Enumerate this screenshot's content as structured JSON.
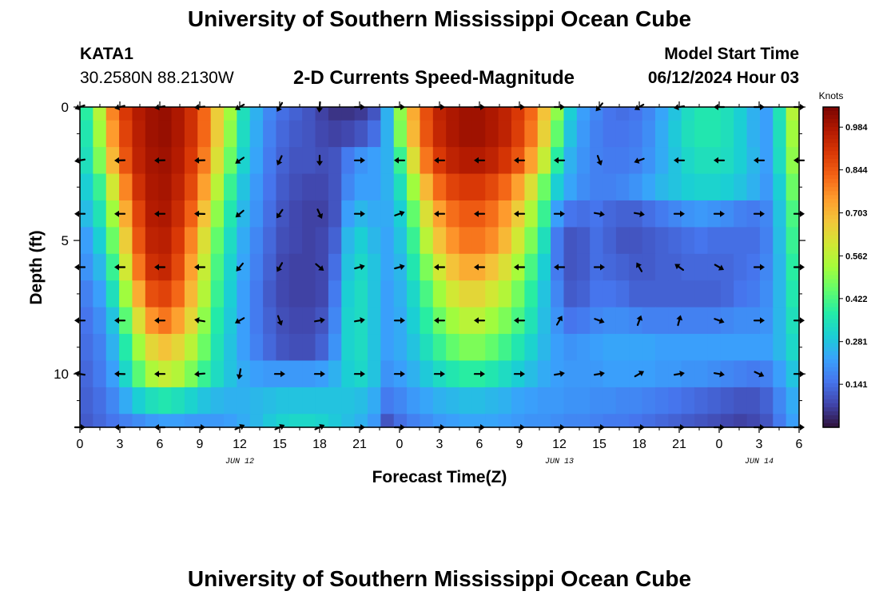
{
  "page": {
    "title": "University of Southern Mississippi Ocean Cube",
    "bottom_title": "University of Southern Mississippi Ocean Cube",
    "station_id": "KATA1",
    "coordinates": "30.2580N  88.2130W",
    "subtitle": "2-D Currents Speed-Magnitude",
    "model_start_label": "Model Start Time",
    "model_start_value": "06/12/2024 Hour 03"
  },
  "chart_data": {
    "type": "heatmap",
    "title": "2-D Currents Speed-Magnitude",
    "xlabel": "Forecast Time(Z)",
    "ylabel": "Depth (ft)",
    "x_hours_range": [
      0,
      54
    ],
    "x_tick_hours": [
      0,
      3,
      6,
      9,
      12,
      15,
      18,
      21,
      24,
      27,
      30,
      33,
      36,
      39,
      42,
      45,
      48,
      51,
      54
    ],
    "x_tick_labels": [
      "0",
      "3",
      "6",
      "9",
      "12",
      "15",
      "18",
      "21",
      "0",
      "3",
      "6",
      "9",
      "12",
      "15",
      "18",
      "21",
      "0",
      "3",
      "6"
    ],
    "date_labels": [
      {
        "hour": 12,
        "label": "JUN 12"
      },
      {
        "hour": 36,
        "label": "JUN 13"
      },
      {
        "hour": 51,
        "label": "JUN 14"
      }
    ],
    "y_range_ft": [
      0,
      12
    ],
    "y_tick_values": [
      0,
      5,
      10
    ],
    "y_tick_labels": [
      "0",
      "5",
      "10"
    ],
    "colorbar": {
      "title": "Knots",
      "range": [
        0,
        1.05
      ],
      "tick_values": [
        0.141,
        0.281,
        0.422,
        0.562,
        0.703,
        0.844,
        0.984
      ],
      "tick_labels": [
        "0.141",
        "0.281",
        "0.422",
        "0.562",
        "0.703",
        "0.844",
        "0.984"
      ],
      "colors": [
        "#30123b",
        "#4145ab",
        "#4675ed",
        "#39a2fc",
        "#1bcfd4",
        "#24eca6",
        "#61fc6c",
        "#a4fc3b",
        "#d1e834",
        "#f3c63a",
        "#fe9b2d",
        "#f36315",
        "#d93806",
        "#b11901",
        "#7a0402"
      ]
    },
    "depth_levels_ft": [
      0,
      1,
      2,
      3,
      4,
      5,
      6,
      7,
      8,
      9,
      10,
      11,
      12
    ],
    "speed_knots": [
      [
        0.38,
        0.55,
        0.78,
        0.9,
        0.97,
        1.0,
        1.01,
        0.98,
        0.92,
        0.82,
        0.66,
        0.52,
        0.34,
        0.25,
        0.18,
        0.14,
        0.12,
        0.1,
        0.07,
        0.05,
        0.05,
        0.06,
        0.1,
        0.25,
        0.5,
        0.72,
        0.86,
        0.95,
        0.98,
        1.0,
        1.0,
        0.98,
        0.95,
        0.9,
        0.82,
        0.68,
        0.5,
        0.3,
        0.22,
        0.18,
        0.15,
        0.14,
        0.15,
        0.18,
        0.23,
        0.28,
        0.33,
        0.36,
        0.36,
        0.34,
        0.3,
        0.25,
        0.22,
        0.35,
        0.55
      ],
      [
        0.36,
        0.52,
        0.75,
        0.88,
        0.96,
        1.0,
        1.01,
        0.98,
        0.92,
        0.82,
        0.66,
        0.5,
        0.33,
        0.24,
        0.17,
        0.13,
        0.11,
        0.1,
        0.08,
        0.07,
        0.08,
        0.1,
        0.14,
        0.25,
        0.48,
        0.7,
        0.85,
        0.94,
        0.98,
        1.0,
        1.0,
        0.98,
        0.95,
        0.89,
        0.8,
        0.65,
        0.45,
        0.28,
        0.21,
        0.17,
        0.15,
        0.15,
        0.16,
        0.19,
        0.24,
        0.29,
        0.34,
        0.36,
        0.36,
        0.34,
        0.3,
        0.25,
        0.22,
        0.34,
        0.52
      ],
      [
        0.34,
        0.48,
        0.7,
        0.85,
        0.95,
        0.99,
        1.0,
        0.97,
        0.9,
        0.79,
        0.62,
        0.46,
        0.31,
        0.23,
        0.16,
        0.12,
        0.1,
        0.1,
        0.09,
        0.1,
        0.16,
        0.2,
        0.22,
        0.25,
        0.4,
        0.62,
        0.8,
        0.9,
        0.95,
        0.97,
        0.97,
        0.95,
        0.91,
        0.85,
        0.74,
        0.58,
        0.38,
        0.25,
        0.2,
        0.17,
        0.16,
        0.16,
        0.17,
        0.2,
        0.24,
        0.28,
        0.32,
        0.34,
        0.34,
        0.33,
        0.3,
        0.26,
        0.22,
        0.33,
        0.5
      ],
      [
        0.3,
        0.4,
        0.6,
        0.78,
        0.92,
        0.98,
        0.99,
        0.95,
        0.87,
        0.74,
        0.56,
        0.4,
        0.28,
        0.21,
        0.15,
        0.11,
        0.09,
        0.08,
        0.08,
        0.1,
        0.18,
        0.22,
        0.22,
        0.25,
        0.34,
        0.52,
        0.7,
        0.82,
        0.88,
        0.9,
        0.9,
        0.87,
        0.82,
        0.74,
        0.62,
        0.46,
        0.3,
        0.23,
        0.19,
        0.17,
        0.17,
        0.18,
        0.2,
        0.23,
        0.26,
        0.28,
        0.3,
        0.31,
        0.31,
        0.3,
        0.28,
        0.25,
        0.21,
        0.3,
        0.46
      ],
      [
        0.27,
        0.35,
        0.52,
        0.72,
        0.88,
        0.97,
        0.98,
        0.93,
        0.83,
        0.68,
        0.5,
        0.36,
        0.26,
        0.2,
        0.14,
        0.1,
        0.08,
        0.07,
        0.07,
        0.1,
        0.22,
        0.26,
        0.24,
        0.24,
        0.3,
        0.45,
        0.62,
        0.74,
        0.81,
        0.84,
        0.84,
        0.81,
        0.75,
        0.66,
        0.54,
        0.4,
        0.22,
        0.15,
        0.14,
        0.15,
        0.13,
        0.12,
        0.12,
        0.14,
        0.16,
        0.18,
        0.2,
        0.21,
        0.2,
        0.19,
        0.17,
        0.16,
        0.18,
        0.28,
        0.42
      ],
      [
        0.22,
        0.3,
        0.46,
        0.66,
        0.85,
        0.95,
        0.96,
        0.9,
        0.78,
        0.62,
        0.45,
        0.33,
        0.24,
        0.18,
        0.13,
        0.09,
        0.08,
        0.07,
        0.08,
        0.12,
        0.26,
        0.3,
        0.26,
        0.23,
        0.28,
        0.4,
        0.56,
        0.68,
        0.76,
        0.8,
        0.8,
        0.77,
        0.7,
        0.6,
        0.48,
        0.34,
        0.16,
        0.1,
        0.11,
        0.14,
        0.12,
        0.1,
        0.1,
        0.11,
        0.12,
        0.13,
        0.14,
        0.15,
        0.14,
        0.14,
        0.14,
        0.14,
        0.17,
        0.27,
        0.4
      ],
      [
        0.2,
        0.26,
        0.4,
        0.6,
        0.8,
        0.92,
        0.94,
        0.87,
        0.74,
        0.58,
        0.42,
        0.31,
        0.23,
        0.17,
        0.12,
        0.08,
        0.07,
        0.07,
        0.08,
        0.14,
        0.28,
        0.32,
        0.28,
        0.23,
        0.26,
        0.36,
        0.48,
        0.6,
        0.68,
        0.72,
        0.72,
        0.68,
        0.62,
        0.53,
        0.42,
        0.3,
        0.16,
        0.1,
        0.11,
        0.14,
        0.13,
        0.12,
        0.11,
        0.11,
        0.12,
        0.12,
        0.13,
        0.13,
        0.13,
        0.13,
        0.14,
        0.15,
        0.18,
        0.26,
        0.38
      ],
      [
        0.17,
        0.22,
        0.34,
        0.52,
        0.72,
        0.86,
        0.88,
        0.82,
        0.7,
        0.55,
        0.4,
        0.3,
        0.22,
        0.16,
        0.11,
        0.08,
        0.07,
        0.07,
        0.08,
        0.16,
        0.3,
        0.33,
        0.28,
        0.22,
        0.25,
        0.32,
        0.42,
        0.52,
        0.6,
        0.64,
        0.64,
        0.6,
        0.55,
        0.47,
        0.38,
        0.28,
        0.18,
        0.11,
        0.12,
        0.15,
        0.15,
        0.14,
        0.12,
        0.12,
        0.12,
        0.12,
        0.12,
        0.12,
        0.12,
        0.13,
        0.15,
        0.16,
        0.19,
        0.26,
        0.36
      ],
      [
        0.15,
        0.19,
        0.28,
        0.44,
        0.62,
        0.76,
        0.8,
        0.74,
        0.64,
        0.5,
        0.37,
        0.29,
        0.22,
        0.16,
        0.12,
        0.09,
        0.08,
        0.08,
        0.1,
        0.18,
        0.31,
        0.33,
        0.28,
        0.22,
        0.24,
        0.3,
        0.38,
        0.46,
        0.52,
        0.56,
        0.56,
        0.52,
        0.48,
        0.42,
        0.35,
        0.27,
        0.2,
        0.15,
        0.16,
        0.18,
        0.19,
        0.19,
        0.18,
        0.17,
        0.17,
        0.17,
        0.17,
        0.17,
        0.17,
        0.18,
        0.19,
        0.19,
        0.2,
        0.26,
        0.34
      ],
      [
        0.14,
        0.17,
        0.25,
        0.37,
        0.52,
        0.64,
        0.68,
        0.64,
        0.56,
        0.46,
        0.35,
        0.28,
        0.22,
        0.17,
        0.13,
        0.1,
        0.09,
        0.09,
        0.12,
        0.2,
        0.31,
        0.33,
        0.28,
        0.22,
        0.24,
        0.28,
        0.34,
        0.4,
        0.45,
        0.48,
        0.48,
        0.45,
        0.41,
        0.36,
        0.31,
        0.26,
        0.22,
        0.2,
        0.21,
        0.22,
        0.23,
        0.23,
        0.23,
        0.23,
        0.22,
        0.22,
        0.22,
        0.22,
        0.22,
        0.22,
        0.22,
        0.22,
        0.22,
        0.26,
        0.32
      ],
      [
        0.13,
        0.16,
        0.22,
        0.32,
        0.44,
        0.54,
        0.58,
        0.55,
        0.48,
        0.4,
        0.33,
        0.28,
        0.24,
        0.22,
        0.21,
        0.21,
        0.21,
        0.21,
        0.22,
        0.25,
        0.3,
        0.32,
        0.28,
        0.2,
        0.22,
        0.25,
        0.29,
        0.33,
        0.36,
        0.38,
        0.38,
        0.36,
        0.33,
        0.3,
        0.27,
        0.24,
        0.22,
        0.21,
        0.21,
        0.21,
        0.22,
        0.22,
        0.22,
        0.22,
        0.21,
        0.21,
        0.2,
        0.2,
        0.19,
        0.18,
        0.17,
        0.16,
        0.17,
        0.22,
        0.28
      ],
      [
        0.12,
        0.14,
        0.18,
        0.24,
        0.3,
        0.34,
        0.36,
        0.34,
        0.31,
        0.28,
        0.26,
        0.25,
        0.25,
        0.26,
        0.27,
        0.28,
        0.28,
        0.28,
        0.28,
        0.28,
        0.28,
        0.27,
        0.24,
        0.16,
        0.18,
        0.21,
        0.23,
        0.25,
        0.26,
        0.27,
        0.27,
        0.26,
        0.25,
        0.23,
        0.22,
        0.21,
        0.21,
        0.2,
        0.2,
        0.19,
        0.19,
        0.18,
        0.18,
        0.17,
        0.16,
        0.15,
        0.14,
        0.13,
        0.12,
        0.11,
        0.1,
        0.1,
        0.12,
        0.18,
        0.24
      ],
      [
        0.11,
        0.13,
        0.15,
        0.17,
        0.19,
        0.21,
        0.22,
        0.22,
        0.21,
        0.21,
        0.21,
        0.22,
        0.24,
        0.26,
        0.29,
        0.31,
        0.32,
        0.32,
        0.31,
        0.29,
        0.27,
        0.25,
        0.21,
        0.1,
        0.14,
        0.17,
        0.19,
        0.21,
        0.22,
        0.23,
        0.23,
        0.23,
        0.22,
        0.21,
        0.2,
        0.2,
        0.19,
        0.18,
        0.18,
        0.17,
        0.16,
        0.16,
        0.15,
        0.14,
        0.13,
        0.12,
        0.11,
        0.1,
        0.09,
        0.08,
        0.07,
        0.08,
        0.1,
        0.16,
        0.22
      ]
    ],
    "arrow_times_h": [
      0,
      3,
      6,
      9,
      12,
      15,
      18,
      21,
      24,
      27,
      30,
      33,
      36,
      39,
      42,
      45,
      48,
      51,
      54
    ],
    "arrow_depths_ft": [
      0,
      2,
      4,
      6,
      8,
      10,
      12
    ],
    "arrow_dir_deg": [
      [
        200,
        195,
        190,
        185,
        210,
        240,
        265,
        0,
        0,
        0,
        0,
        0,
        0,
        230,
        210,
        190,
        180,
        0,
        0
      ],
      [
        190,
        182,
        182,
        182,
        215,
        245,
        270,
        0,
        180,
        180,
        180,
        180,
        180,
        290,
        200,
        180,
        180,
        180,
        180
      ],
      [
        180,
        180,
        180,
        178,
        220,
        235,
        295,
        0,
        20,
        180,
        180,
        180,
        0,
        350,
        350,
        0,
        0,
        0,
        0
      ],
      [
        180,
        180,
        180,
        180,
        230,
        240,
        320,
        15,
        15,
        180,
        180,
        180,
        180,
        0,
        120,
        145,
        330,
        0,
        0
      ],
      [
        180,
        180,
        180,
        170,
        210,
        290,
        10,
        10,
        0,
        180,
        180,
        180,
        60,
        340,
        70,
        75,
        340,
        0,
        0
      ],
      [
        170,
        178,
        180,
        185,
        260,
        0,
        0,
        0,
        0,
        0,
        0,
        0,
        10,
        10,
        30,
        10,
        350,
        335,
        0
      ],
      [
        0,
        180,
        180,
        0,
        25,
        25,
        25,
        0,
        0,
        0,
        0,
        0,
        0,
        0,
        0,
        0,
        0,
        0,
        0
      ]
    ]
  }
}
